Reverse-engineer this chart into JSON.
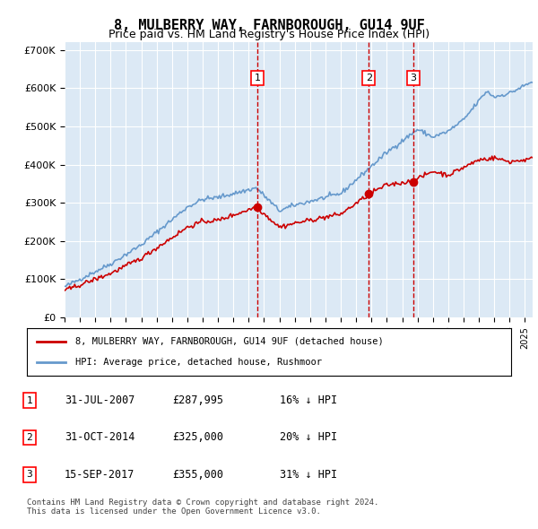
{
  "title": "8, MULBERRY WAY, FARNBOROUGH, GU14 9UF",
  "subtitle": "Price paid vs. HM Land Registry's House Price Index (HPI)",
  "ylabel": "",
  "ylim": [
    0,
    720000
  ],
  "yticks": [
    0,
    100000,
    200000,
    300000,
    400000,
    500000,
    600000,
    700000
  ],
  "ytick_labels": [
    "£0",
    "£100K",
    "£200K",
    "£300K",
    "£400K",
    "£500K",
    "£600K",
    "£700K"
  ],
  "background_color": "#dce9f5",
  "plot_bg": "#dce9f5",
  "grid_color": "#ffffff",
  "hpi_color": "#6699cc",
  "price_color": "#cc0000",
  "sale_marker_color": "#cc0000",
  "vline_color": "#cc0000",
  "sale_dates": [
    2007.58,
    2014.83,
    2017.71
  ],
  "sale_prices": [
    287995,
    325000,
    355000
  ],
  "sale_labels": [
    "1",
    "2",
    "3"
  ],
  "legend_line1": "8, MULBERRY WAY, FARNBOROUGH, GU14 9UF (detached house)",
  "legend_line2": "HPI: Average price, detached house, Rushmoor",
  "table_rows": [
    [
      "1",
      "31-JUL-2007",
      "£287,995",
      "16% ↓ HPI"
    ],
    [
      "2",
      "31-OCT-2014",
      "£325,000",
      "20% ↓ HPI"
    ],
    [
      "3",
      "15-SEP-2017",
      "£355,000",
      "31% ↓ HPI"
    ]
  ],
  "footnote": "Contains HM Land Registry data © Crown copyright and database right 2024.\nThis data is licensed under the Open Government Licence v3.0.",
  "xmin": 1995,
  "xmax": 2025.5
}
